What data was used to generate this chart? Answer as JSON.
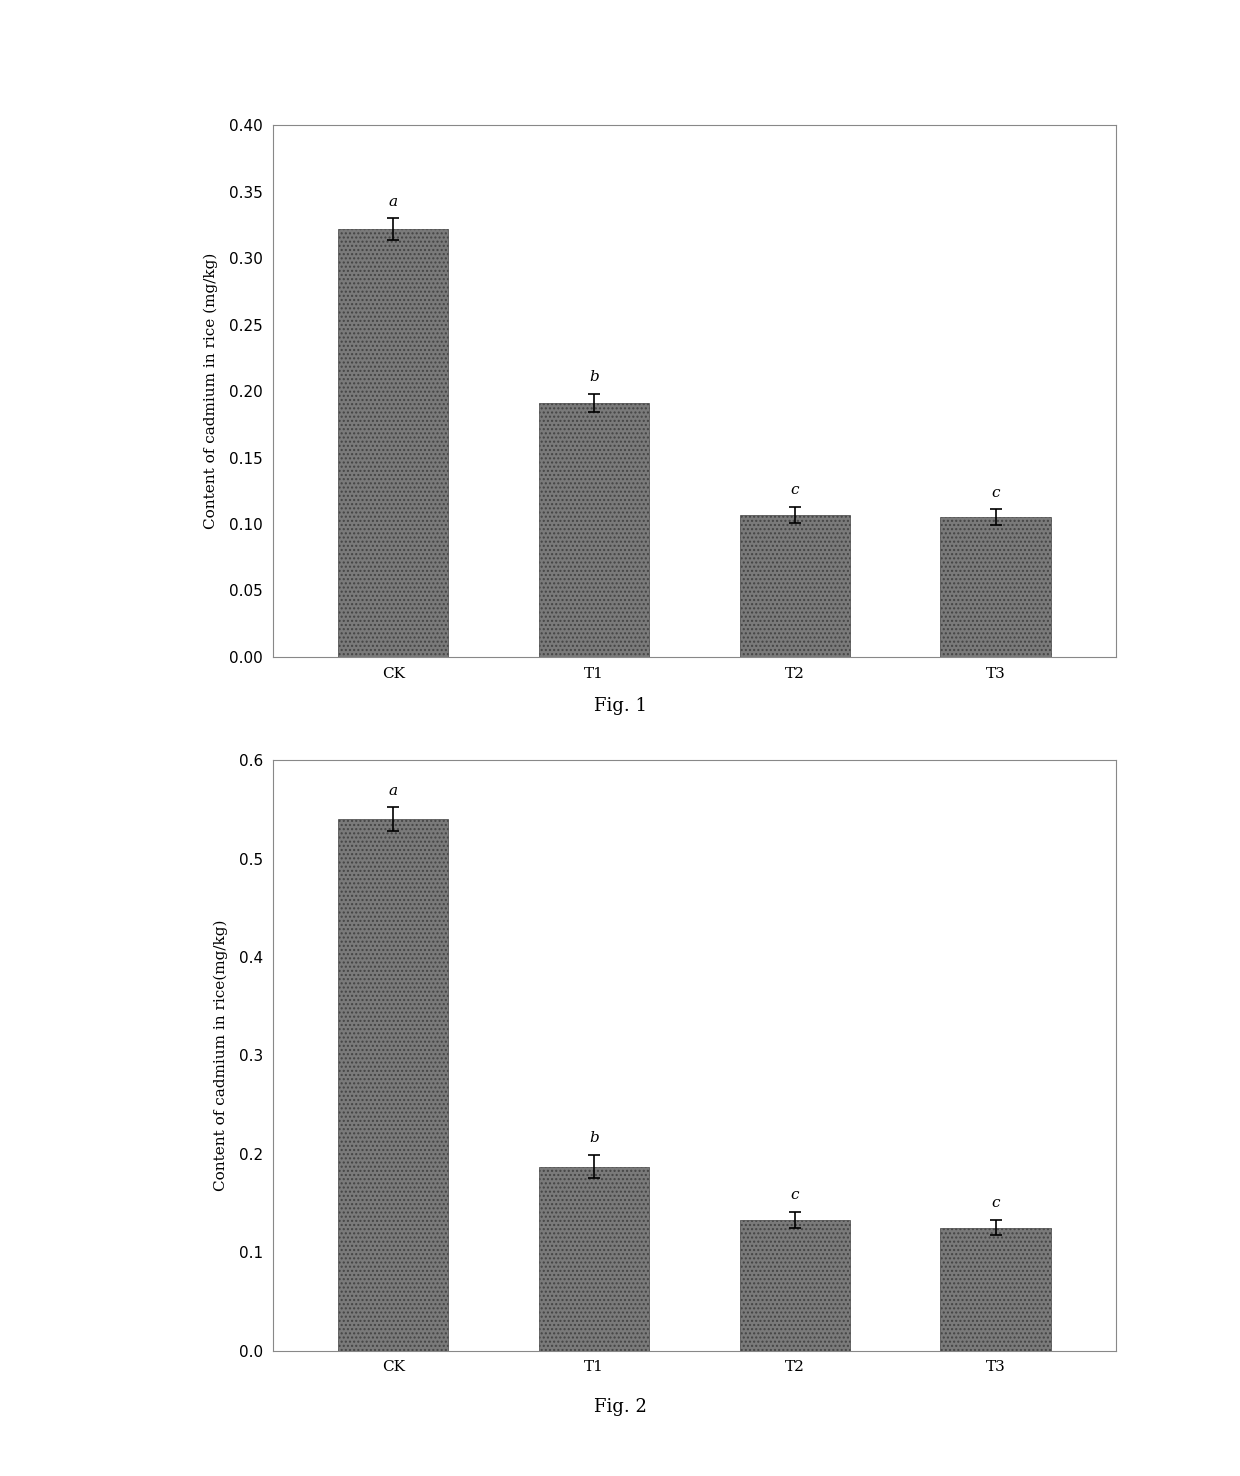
{
  "fig1": {
    "categories": [
      "CK",
      "T1",
      "T2",
      "T3"
    ],
    "values": [
      0.322,
      0.191,
      0.107,
      0.105
    ],
    "errors": [
      0.008,
      0.007,
      0.006,
      0.006
    ],
    "letters": [
      "a",
      "b",
      "c",
      "c"
    ],
    "ylabel": "Content of cadmium in rice (mg/kg)",
    "ylim": [
      0.0,
      0.4
    ],
    "yticks": [
      0.0,
      0.05,
      0.1,
      0.15,
      0.2,
      0.25,
      0.3,
      0.35,
      0.4
    ],
    "caption": "Fig. 1",
    "bar_color": "#7a7a7a",
    "bar_hatch": "....",
    "bar_width": 0.55
  },
  "fig2": {
    "categories": [
      "CK",
      "T1",
      "T2",
      "T3"
    ],
    "values": [
      0.54,
      0.187,
      0.133,
      0.125
    ],
    "errors": [
      0.012,
      0.012,
      0.008,
      0.008
    ],
    "letters": [
      "a",
      "b",
      "c",
      "c"
    ],
    "ylabel": "Content of cadmium in rice(mg/kg)",
    "ylim": [
      0.0,
      0.6
    ],
    "yticks": [
      0.0,
      0.1,
      0.2,
      0.3,
      0.4,
      0.5,
      0.6
    ],
    "caption": "Fig. 2",
    "bar_color": "#7a7a7a",
    "bar_hatch": "....",
    "bar_width": 0.55
  },
  "background_color": "#ffffff",
  "figure_background": "#ffffff",
  "font_size_labels": 11,
  "font_size_ticks": 11,
  "font_size_caption": 13,
  "font_size_letters": 11
}
